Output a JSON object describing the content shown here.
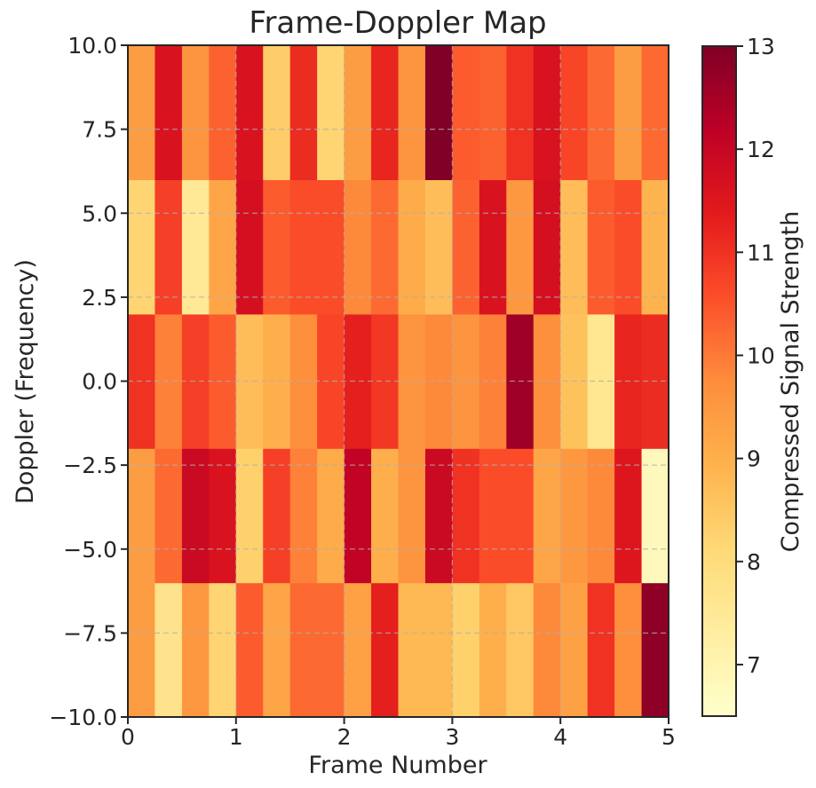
{
  "chart_data": {
    "type": "heatmap",
    "title": "Frame-Doppler Map",
    "xlabel": "Frame Number",
    "ylabel": "Doppler (Frequency)",
    "colorbar_label": "Compressed Signal Strength",
    "colormap": "YlOrRd",
    "xlim": [
      0,
      5
    ],
    "ylim": [
      -10,
      10
    ],
    "clim": [
      6.5,
      13
    ],
    "x_ticks": [
      0,
      1,
      2,
      3,
      4,
      5
    ],
    "x_tick_labels": [
      "0",
      "1",
      "2",
      "3",
      "4",
      "5"
    ],
    "y_ticks": [
      -10,
      -7.5,
      -5,
      -2.5,
      0,
      2.5,
      5,
      7.5,
      10
    ],
    "y_tick_labels": [
      "−10.0",
      "−7.5",
      "−5.0",
      "−2.5",
      "0.0",
      "2.5",
      "5.0",
      "7.5",
      "10.0"
    ],
    "colorbar_ticks": [
      7,
      8,
      9,
      10,
      11,
      12,
      13
    ],
    "colorbar_tick_labels": [
      "7",
      "8",
      "9",
      "10",
      "11",
      "12",
      "13"
    ],
    "grid": true,
    "frames": 20,
    "doppler_rows": 5,
    "values": [
      [
        9.4,
        7.7,
        9.5,
        8.2,
        10.4,
        9.2,
        10.2,
        10.2,
        9.3,
        11.3,
        8.8,
        8.8,
        8.3,
        9.0,
        8.5,
        9.8,
        9.3,
        11.0,
        9.7,
        12.8
      ],
      [
        9.4,
        10.2,
        11.9,
        11.6,
        8.3,
        10.8,
        9.9,
        9.1,
        12.1,
        9.0,
        9.6,
        11.9,
        11.0,
        10.6,
        10.6,
        9.2,
        9.5,
        9.8,
        11.5,
        6.8
      ],
      [
        11.0,
        9.9,
        10.8,
        10.4,
        8.7,
        9.0,
        9.7,
        10.7,
        11.3,
        10.9,
        9.6,
        9.8,
        9.6,
        9.9,
        12.6,
        9.7,
        8.6,
        7.6,
        11.2,
        11.1
      ],
      [
        8.2,
        10.8,
        7.5,
        9.2,
        11.7,
        10.4,
        10.6,
        10.6,
        9.8,
        10.2,
        9.1,
        8.7,
        10.3,
        11.6,
        9.5,
        11.7,
        8.7,
        10.4,
        10.6,
        8.9
      ],
      [
        9.4,
        11.6,
        9.6,
        10.3,
        11.6,
        8.4,
        11.1,
        8.2,
        9.4,
        11.2,
        9.6,
        13.0,
        10.4,
        10.3,
        11.0,
        11.6,
        10.7,
        10.2,
        9.4,
        10.2
      ]
    ]
  }
}
